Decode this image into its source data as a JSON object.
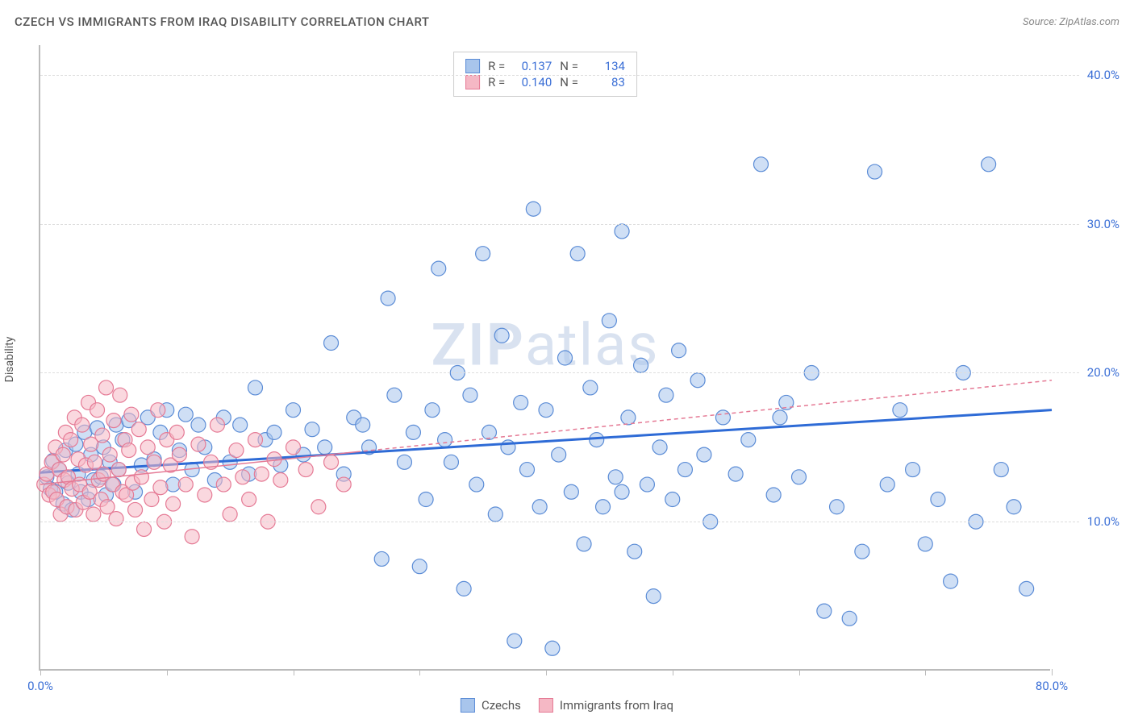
{
  "title": "CZECH VS IMMIGRANTS FROM IRAQ DISABILITY CORRELATION CHART",
  "source": "Source: ZipAtlas.com",
  "ylabel": "Disability",
  "watermark": {
    "bold": "ZIP",
    "rest": "atlas"
  },
  "chart": {
    "type": "scatter",
    "background_color": "#ffffff",
    "grid_color": "#dddddd",
    "axis_color": "#bbbbbb",
    "tick_label_color": "#3b6fd6",
    "tick_label_fontsize": 15,
    "title_fontsize": 15,
    "title_color": "#555555",
    "xlim": [
      0,
      80
    ],
    "ylim": [
      0,
      42
    ],
    "xticks": [
      0,
      10,
      20,
      30,
      40,
      50,
      60,
      70,
      80
    ],
    "xtick_labels": {
      "0": "0.0%",
      "80": "80.0%"
    },
    "yticks": [
      10,
      20,
      30,
      40
    ],
    "ytick_labels": {
      "10": "10.0%",
      "20": "20.0%",
      "30": "30.0%",
      "40": "40.0%"
    },
    "marker_radius": 9,
    "marker_opacity": 0.55,
    "marker_stroke_width": 1.2,
    "series": [
      {
        "name": "Czechs",
        "fill": "#a8c5ec",
        "stroke": "#5b8cd6",
        "R": "0.137",
        "N": "134",
        "trend": {
          "x1": 0,
          "y1": 13.3,
          "x2": 80,
          "y2": 17.5,
          "color": "#2e6bd6",
          "width": 3,
          "dash": ""
        },
        "points": [
          [
            0.5,
            13.0
          ],
          [
            0.8,
            12.2
          ],
          [
            1.0,
            14.1
          ],
          [
            1.2,
            12.0
          ],
          [
            1.5,
            13.5
          ],
          [
            1.8,
            11.2
          ],
          [
            2.0,
            14.8
          ],
          [
            2.2,
            12.6
          ],
          [
            2.5,
            10.8
          ],
          [
            2.8,
            15.2
          ],
          [
            3.0,
            13.2
          ],
          [
            3.2,
            12.0
          ],
          [
            3.5,
            16.0
          ],
          [
            3.8,
            11.5
          ],
          [
            4.0,
            14.5
          ],
          [
            4.2,
            12.8
          ],
          [
            4.5,
            16.3
          ],
          [
            4.8,
            13.0
          ],
          [
            5.0,
            15.0
          ],
          [
            5.2,
            11.8
          ],
          [
            5.5,
            14.0
          ],
          [
            5.8,
            12.5
          ],
          [
            6.0,
            16.5
          ],
          [
            6.2,
            13.5
          ],
          [
            6.5,
            15.5
          ],
          [
            7.0,
            16.8
          ],
          [
            7.5,
            12.0
          ],
          [
            8.0,
            13.8
          ],
          [
            8.5,
            17.0
          ],
          [
            9.0,
            14.2
          ],
          [
            9.5,
            16.0
          ],
          [
            10.0,
            17.5
          ],
          [
            10.5,
            12.5
          ],
          [
            11.0,
            14.8
          ],
          [
            11.5,
            17.2
          ],
          [
            12.0,
            13.5
          ],
          [
            12.5,
            16.5
          ],
          [
            13.0,
            15.0
          ],
          [
            13.8,
            12.8
          ],
          [
            14.5,
            17.0
          ],
          [
            15.0,
            14.0
          ],
          [
            15.8,
            16.5
          ],
          [
            16.5,
            13.2
          ],
          [
            17.0,
            19.0
          ],
          [
            17.8,
            15.5
          ],
          [
            18.5,
            16.0
          ],
          [
            19.0,
            13.8
          ],
          [
            20.0,
            17.5
          ],
          [
            20.8,
            14.5
          ],
          [
            21.5,
            16.2
          ],
          [
            22.5,
            15.0
          ],
          [
            23.0,
            22.0
          ],
          [
            24.0,
            13.2
          ],
          [
            24.8,
            17.0
          ],
          [
            25.5,
            16.5
          ],
          [
            26.0,
            15.0
          ],
          [
            27.0,
            7.5
          ],
          [
            27.5,
            25.0
          ],
          [
            28.0,
            18.5
          ],
          [
            28.8,
            14.0
          ],
          [
            29.5,
            16.0
          ],
          [
            30.0,
            7.0
          ],
          [
            30.5,
            11.5
          ],
          [
            31.0,
            17.5
          ],
          [
            31.5,
            27.0
          ],
          [
            32.0,
            15.5
          ],
          [
            32.5,
            14.0
          ],
          [
            33.0,
            20.0
          ],
          [
            33.5,
            5.5
          ],
          [
            34.0,
            18.5
          ],
          [
            34.5,
            12.5
          ],
          [
            35.0,
            28.0
          ],
          [
            35.5,
            16.0
          ],
          [
            36.0,
            10.5
          ],
          [
            36.5,
            22.5
          ],
          [
            37.0,
            15.0
          ],
          [
            37.5,
            2.0
          ],
          [
            38.0,
            18.0
          ],
          [
            38.5,
            13.5
          ],
          [
            39.0,
            31.0
          ],
          [
            39.5,
            11.0
          ],
          [
            40.0,
            17.5
          ],
          [
            40.5,
            1.5
          ],
          [
            41.0,
            14.5
          ],
          [
            41.5,
            21.0
          ],
          [
            42.0,
            12.0
          ],
          [
            42.5,
            28.0
          ],
          [
            43.0,
            8.5
          ],
          [
            43.5,
            19.0
          ],
          [
            44.0,
            15.5
          ],
          [
            44.5,
            11.0
          ],
          [
            45.0,
            23.5
          ],
          [
            45.5,
            13.0
          ],
          [
            46.0,
            29.5
          ],
          [
            46.5,
            17.0
          ],
          [
            47.0,
            8.0
          ],
          [
            47.5,
            20.5
          ],
          [
            48.0,
            12.5
          ],
          [
            48.5,
            5.0
          ],
          [
            49.0,
            15.0
          ],
          [
            49.5,
            18.5
          ],
          [
            50.0,
            11.5
          ],
          [
            50.5,
            21.5
          ],
          [
            51.0,
            13.5
          ],
          [
            52.0,
            19.5
          ],
          [
            53.0,
            10.0
          ],
          [
            54.0,
            17.0
          ],
          [
            55.0,
            13.2
          ],
          [
            56.0,
            15.5
          ],
          [
            57.0,
            34.0
          ],
          [
            58.0,
            11.8
          ],
          [
            59.0,
            18.0
          ],
          [
            60.0,
            13.0
          ],
          [
            61.0,
            20.0
          ],
          [
            62.0,
            4.0
          ],
          [
            63.0,
            11.0
          ],
          [
            64.0,
            3.5
          ],
          [
            65.0,
            8.0
          ],
          [
            66.0,
            33.5
          ],
          [
            67.0,
            12.5
          ],
          [
            68.0,
            17.5
          ],
          [
            69.0,
            13.5
          ],
          [
            70.0,
            8.5
          ],
          [
            71.0,
            11.5
          ],
          [
            72.0,
            6.0
          ],
          [
            73.0,
            20.0
          ],
          [
            74.0,
            10.0
          ],
          [
            75.0,
            34.0
          ],
          [
            76.0,
            13.5
          ],
          [
            77.0,
            11.0
          ],
          [
            78.0,
            5.5
          ],
          [
            58.5,
            17.0
          ],
          [
            52.5,
            14.5
          ],
          [
            46.0,
            12.0
          ]
        ]
      },
      {
        "name": "Immigrants from Iraq",
        "fill": "#f5b8c5",
        "stroke": "#e57a95",
        "R": "0.140",
        "N": "83",
        "trend": {
          "x1": 0,
          "y1": 12.5,
          "x2": 80,
          "y2": 19.5,
          "color": "#e57a95",
          "width": 1.5,
          "dash": "5,4",
          "solid_until": 25
        },
        "points": [
          [
            0.3,
            12.5
          ],
          [
            0.5,
            13.2
          ],
          [
            0.7,
            11.8
          ],
          [
            0.9,
            14.0
          ],
          [
            1.0,
            12.0
          ],
          [
            1.2,
            15.0
          ],
          [
            1.3,
            11.5
          ],
          [
            1.5,
            13.5
          ],
          [
            1.6,
            10.5
          ],
          [
            1.8,
            14.5
          ],
          [
            1.9,
            12.8
          ],
          [
            2.0,
            16.0
          ],
          [
            2.1,
            11.0
          ],
          [
            2.2,
            13.0
          ],
          [
            2.4,
            15.5
          ],
          [
            2.5,
            12.2
          ],
          [
            2.7,
            17.0
          ],
          [
            2.8,
            10.8
          ],
          [
            3.0,
            14.2
          ],
          [
            3.1,
            12.5
          ],
          [
            3.3,
            16.5
          ],
          [
            3.4,
            11.3
          ],
          [
            3.6,
            13.8
          ],
          [
            3.8,
            18.0
          ],
          [
            3.9,
            12.0
          ],
          [
            4.0,
            15.2
          ],
          [
            4.2,
            10.5
          ],
          [
            4.3,
            14.0
          ],
          [
            4.5,
            17.5
          ],
          [
            4.6,
            12.8
          ],
          [
            4.8,
            11.5
          ],
          [
            4.9,
            15.8
          ],
          [
            5.0,
            13.2
          ],
          [
            5.2,
            19.0
          ],
          [
            5.3,
            11.0
          ],
          [
            5.5,
            14.5
          ],
          [
            5.7,
            12.5
          ],
          [
            5.8,
            16.8
          ],
          [
            6.0,
            10.2
          ],
          [
            6.2,
            13.5
          ],
          [
            6.3,
            18.5
          ],
          [
            6.5,
            12.0
          ],
          [
            6.7,
            15.5
          ],
          [
            6.8,
            11.8
          ],
          [
            7.0,
            14.8
          ],
          [
            7.2,
            17.2
          ],
          [
            7.3,
            12.6
          ],
          [
            7.5,
            10.8
          ],
          [
            7.8,
            16.2
          ],
          [
            8.0,
            13.0
          ],
          [
            8.2,
            9.5
          ],
          [
            8.5,
            15.0
          ],
          [
            8.8,
            11.5
          ],
          [
            9.0,
            14.0
          ],
          [
            9.3,
            17.5
          ],
          [
            9.5,
            12.3
          ],
          [
            9.8,
            10.0
          ],
          [
            10.0,
            15.5
          ],
          [
            10.3,
            13.8
          ],
          [
            10.5,
            11.2
          ],
          [
            10.8,
            16.0
          ],
          [
            11.0,
            14.5
          ],
          [
            11.5,
            12.5
          ],
          [
            12.0,
            9.0
          ],
          [
            12.5,
            15.2
          ],
          [
            13.0,
            11.8
          ],
          [
            13.5,
            14.0
          ],
          [
            14.0,
            16.5
          ],
          [
            14.5,
            12.5
          ],
          [
            15.0,
            10.5
          ],
          [
            15.5,
            14.8
          ],
          [
            16.0,
            13.0
          ],
          [
            16.5,
            11.5
          ],
          [
            17.0,
            15.5
          ],
          [
            17.5,
            13.2
          ],
          [
            18.0,
            10.0
          ],
          [
            18.5,
            14.2
          ],
          [
            19.0,
            12.8
          ],
          [
            20.0,
            15.0
          ],
          [
            21.0,
            13.5
          ],
          [
            22.0,
            11.0
          ],
          [
            23.0,
            14.0
          ],
          [
            24.0,
            12.5
          ]
        ]
      }
    ]
  },
  "legend_bottom": [
    {
      "label": "Czechs",
      "fill": "#a8c5ec",
      "stroke": "#5b8cd6"
    },
    {
      "label": "Immigrants from Iraq",
      "fill": "#f5b8c5",
      "stroke": "#e57a95"
    }
  ]
}
